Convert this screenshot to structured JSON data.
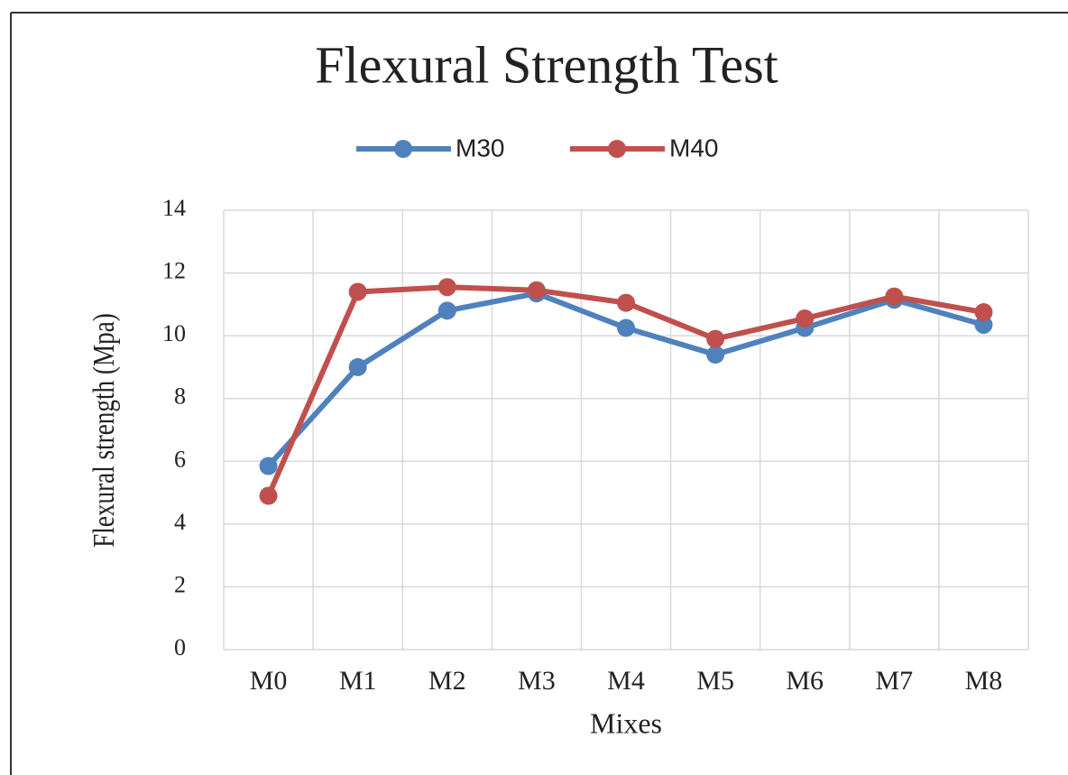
{
  "chart_data": {
    "type": "line",
    "title": "Flexural Strength Test",
    "xlabel": "Mixes",
    "ylabel": "Flexural strength (Mpa)",
    "categories": [
      "M0",
      "M1",
      "M2",
      "M3",
      "M4",
      "M5",
      "M6",
      "M7",
      "M8"
    ],
    "series": [
      {
        "name": "M30",
        "color": "#4f81bd",
        "values": [
          5.85,
          9.0,
          10.8,
          11.35,
          10.25,
          9.4,
          10.25,
          11.15,
          10.35
        ]
      },
      {
        "name": "M40",
        "color": "#c0504d",
        "values": [
          4.9,
          11.4,
          11.55,
          11.45,
          11.05,
          9.9,
          10.55,
          11.25,
          10.75
        ]
      }
    ],
    "ylim": [
      0,
      14
    ],
    "yticks": [
      0,
      2,
      4,
      6,
      8,
      10,
      12,
      14
    ],
    "grid": true,
    "legend": "top"
  }
}
